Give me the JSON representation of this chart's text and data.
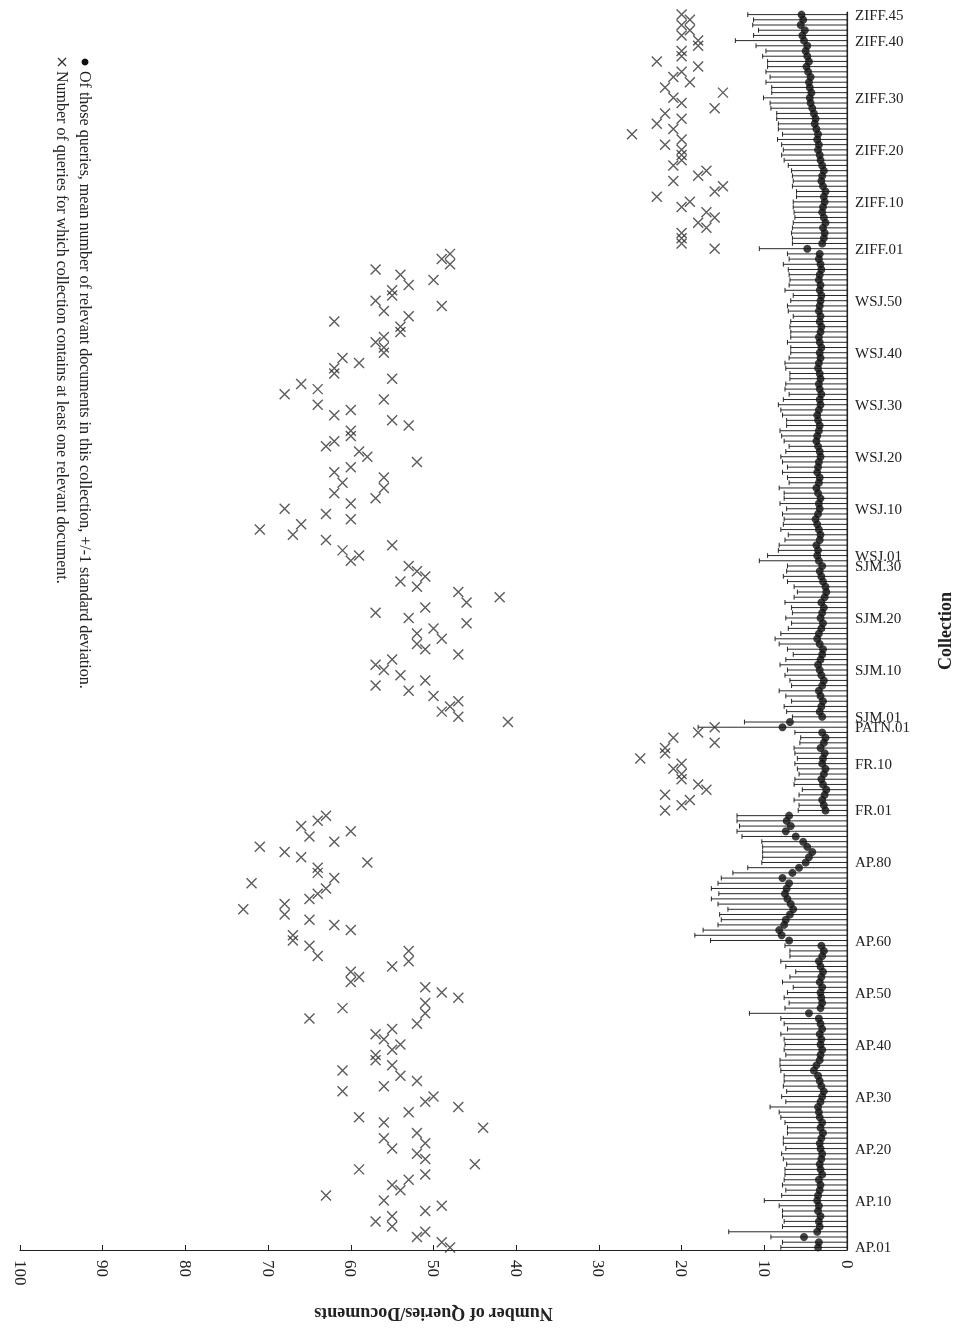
{
  "chart_data": {
    "type": "scatter",
    "orientation": "horizontal",
    "xlabel": "Number of Queries/Documents",
    "ylabel": "Collection",
    "legend": "top left",
    "grid": false,
    "xlim": [
      100,
      0
    ],
    "xticks": [
      0,
      10,
      20,
      30,
      40,
      50,
      60,
      70,
      80,
      90,
      100
    ],
    "categories": [
      "ZIFF.45",
      null,
      null,
      null,
      null,
      "ZIFF.40",
      null,
      null,
      null,
      null,
      null,
      null,
      null,
      null,
      null,
      null,
      "ZIFF.30",
      null,
      null,
      null,
      null,
      null,
      null,
      null,
      null,
      null,
      "ZIFF.20",
      null,
      null,
      null,
      null,
      null,
      null,
      null,
      null,
      null,
      "ZIFF.10",
      null,
      null,
      null,
      null,
      null,
      null,
      null,
      null,
      "ZIFF.01",
      null,
      null,
      null,
      null,
      null,
      null,
      null,
      null,
      null,
      "WSJ.50",
      null,
      null,
      null,
      null,
      null,
      null,
      null,
      null,
      null,
      "WSJ.40",
      null,
      null,
      null,
      null,
      null,
      null,
      null,
      null,
      null,
      "WSJ.30",
      null,
      null,
      null,
      null,
      null,
      null,
      null,
      null,
      null,
      "WSJ.20",
      null,
      null,
      null,
      null,
      null,
      null,
      null,
      null,
      null,
      "WSJ.10",
      null,
      null,
      null,
      null,
      null,
      null,
      null,
      null,
      "WSJ.01",
      null,
      "SJM.30",
      null,
      null,
      null,
      null,
      null,
      null,
      null,
      null,
      null,
      "SJM.20",
      null,
      null,
      null,
      null,
      null,
      null,
      null,
      null,
      null,
      "SJM.10",
      null,
      null,
      null,
      null,
      null,
      null,
      null,
      null,
      "SJM.01",
      null,
      "PATN.01",
      null,
      null,
      null,
      null,
      null,
      null,
      "FR.10",
      null,
      null,
      null,
      null,
      null,
      null,
      null,
      null,
      "FR.01",
      null,
      null,
      null,
      null,
      null,
      null,
      null,
      null,
      null,
      "AP.80",
      null,
      null,
      null,
      null,
      null,
      null,
      null,
      null,
      null,
      null,
      null,
      null,
      null,
      null,
      "AP.60",
      null,
      null,
      null,
      null,
      null,
      null,
      null,
      null,
      null,
      "AP.50",
      null,
      null,
      null,
      null,
      null,
      null,
      null,
      null,
      null,
      "AP.40",
      null,
      null,
      null,
      null,
      null,
      null,
      null,
      null,
      null,
      "AP.30",
      null,
      null,
      null,
      null,
      null,
      null,
      null,
      null,
      null,
      "AP.20",
      null,
      null,
      null,
      null,
      null,
      null,
      null,
      null,
      null,
      "AP.10",
      null,
      null,
      null,
      null,
      null,
      null,
      null,
      null,
      "AP.01"
    ],
    "series": [
      {
        "name": "Number of queries for which collection contains at least one relevant document.",
        "marker": "cross",
        "color": "#333333",
        "values": [
          20,
          19,
          20,
          19,
          20,
          18,
          18,
          20,
          20,
          23,
          18,
          20,
          21,
          19,
          22,
          15,
          21,
          20,
          16,
          22,
          20,
          23,
          21,
          26,
          20,
          22,
          20,
          20,
          20,
          21,
          17,
          18,
          21,
          15,
          16,
          23,
          19,
          20,
          17,
          16,
          18,
          17,
          20,
          20,
          20,
          16,
          48,
          49,
          48,
          57,
          54,
          50,
          53,
          55,
          55,
          57,
          49,
          56,
          53,
          62,
          54,
          54,
          56,
          57,
          56,
          56,
          61,
          59,
          62,
          62,
          55,
          66,
          64,
          68,
          56,
          64,
          60,
          62,
          55,
          53,
          60,
          60,
          62,
          63,
          59,
          58,
          52,
          60,
          62,
          56,
          61,
          56,
          62,
          57,
          60,
          68,
          63,
          60,
          66,
          71,
          67,
          63,
          55,
          61,
          59,
          60,
          53,
          52,
          51,
          54,
          52,
          47,
          42,
          46,
          51,
          57,
          53,
          46,
          50,
          52,
          49,
          52,
          51,
          47,
          55,
          57,
          56,
          54,
          51,
          57,
          53,
          50,
          47,
          48,
          49,
          47,
          41,
          16,
          18,
          21,
          16,
          22,
          22,
          25,
          20,
          21,
          20,
          20,
          18,
          17,
          22,
          19,
          20,
          22,
          63,
          64,
          66,
          60,
          65,
          62,
          71,
          68,
          66,
          58,
          64,
          64,
          62,
          72,
          63,
          64,
          65,
          68,
          73,
          68,
          65,
          62,
          60,
          67,
          67,
          65,
          53,
          64,
          53,
          55,
          60,
          59,
          60,
          51,
          49,
          47,
          51,
          61,
          51,
          65,
          52,
          55,
          57,
          56,
          54,
          55,
          57,
          57,
          55,
          61,
          54,
          52,
          56,
          61,
          50,
          51,
          47,
          53,
          59,
          56,
          44,
          52,
          56,
          51,
          55,
          52,
          51,
          45,
          59,
          51,
          53,
          55,
          54,
          63,
          56,
          49,
          51,
          55,
          57,
          55,
          51,
          52,
          49,
          48
        ]
      },
      {
        "name": "Of those queries, mean number of relevant documents in this collection, +/-1 standard deviation.",
        "marker": "circle",
        "color": "#111111",
        "values": [
          5.5,
          5.3,
          5.6,
          5.1,
          5.4,
          5.2,
          4.8,
          5.0,
          4.8,
          4.6,
          4.9,
          4.7,
          4.4,
          4.6,
          4.5,
          4.3,
          4.5,
          4.4,
          4.2,
          4.0,
          3.8,
          3.9,
          3.7,
          3.5,
          3.6,
          3.4,
          3.5,
          3.3,
          3.2,
          3.0,
          2.8,
          3.0,
          3.1,
          2.9,
          2.6,
          2.8,
          2.7,
          2.9,
          3.0,
          2.8,
          2.6,
          2.9,
          2.7,
          2.8,
          3.0,
          4.8,
          3.3,
          3.4,
          3.2,
          3.1,
          3.3,
          3.4,
          3.2,
          3.3,
          3.1,
          3.2,
          3.3,
          3.4,
          3.2,
          3.3,
          3.1,
          3.2,
          3.4,
          3.3,
          3.1,
          3.3,
          3.2,
          3.4,
          3.5,
          3.3,
          3.2,
          3.4,
          3.3,
          3.1,
          3.3,
          3.2,
          3.4,
          3.6,
          3.5,
          3.3,
          3.4,
          3.6,
          3.7,
          3.5,
          3.3,
          3.2,
          3.4,
          3.5,
          3.6,
          3.3,
          3.4,
          3.7,
          3.5,
          3.2,
          3.4,
          3.3,
          3.5,
          3.8,
          3.6,
          3.4,
          3.2,
          3.3,
          3.7,
          3.5,
          3.6,
          3.4,
          3.0,
          3.3,
          3.1,
          2.9,
          2.6,
          2.5,
          2.7,
          3.1,
          2.8,
          3.0,
          3.2,
          2.9,
          3.1,
          3.4,
          3.6,
          3.3,
          2.9,
          3.0,
          3.2,
          3.5,
          3.3,
          3.1,
          2.8,
          3.0,
          3.4,
          3.2,
          2.9,
          3.1,
          3.3,
          3.0,
          6.9,
          7.8,
          3.0,
          2.6,
          2.8,
          3.2,
          2.7,
          2.9,
          3.0,
          2.6,
          2.8,
          3.1,
          2.9,
          2.5,
          2.7,
          3.0,
          2.8,
          2.6,
          7.0,
          7.3,
          6.8,
          7.4,
          6.2,
          5.3,
          4.8,
          4.2,
          4.6,
          5.0,
          5.8,
          6.6,
          7.8,
          7.0,
          7.3,
          7.5,
          7.2,
          6.8,
          6.5,
          6.9,
          7.4,
          7.6,
          8.2,
          7.9,
          7.0,
          3.1,
          2.8,
          3.0,
          3.4,
          3.2,
          2.9,
          3.1,
          3.3,
          3.0,
          3.2,
          3.1,
          3.0,
          3.2,
          4.6,
          3.4,
          3.2,
          3.0,
          3.3,
          3.1,
          3.2,
          3.0,
          3.2,
          3.3,
          3.7,
          4.0,
          3.5,
          3.3,
          3.1,
          2.8,
          3.0,
          3.2,
          3.5,
          3.4,
          3.3,
          3.0,
          3.2,
          2.9,
          3.1,
          3.3,
          3.2,
          3.0,
          3.1,
          3.3,
          3.2,
          3.0,
          3.4,
          3.2,
          3.3,
          3.5,
          3.6,
          3.4,
          3.5,
          3.2,
          3.4,
          3.3,
          3.6,
          5.2,
          3.4,
          3.5
        ],
        "errors": [
          [
            0,
            12.0
          ],
          [
            0,
            11.3
          ],
          [
            0,
            11.4
          ],
          [
            0,
            10.7
          ],
          [
            0,
            11.3
          ],
          [
            0,
            13.5
          ],
          [
            0,
            11.0
          ],
          [
            0,
            9.8
          ],
          [
            0,
            10.2
          ],
          [
            0,
            9.6
          ],
          [
            0,
            9.6
          ],
          [
            0,
            9.8
          ],
          [
            0,
            9.3
          ],
          [
            0,
            9.8
          ],
          [
            0,
            9.1
          ],
          [
            0,
            9.1
          ],
          [
            0,
            10.1
          ],
          [
            0,
            9.3
          ],
          [
            0,
            9.2
          ],
          [
            0,
            8.5
          ],
          [
            0,
            8.5
          ],
          [
            0,
            8.3
          ],
          [
            0,
            8.3
          ],
          [
            0,
            7.8
          ],
          [
            0,
            8.4
          ],
          [
            0,
            7.9
          ],
          [
            0,
            7.7
          ],
          [
            0,
            7.9
          ],
          [
            0,
            7.6
          ],
          [
            0,
            7.1
          ],
          [
            0,
            6.7
          ],
          [
            0,
            6.6
          ],
          [
            0,
            6.5
          ],
          [
            0,
            6.6
          ],
          [
            0,
            6.1
          ],
          [
            0,
            6.1
          ],
          [
            0,
            6.5
          ],
          [
            0,
            6.5
          ],
          [
            0,
            6.4
          ],
          [
            0,
            6.3
          ],
          [
            0,
            6.5
          ],
          [
            0,
            6.6
          ],
          [
            0,
            6.7
          ],
          [
            0,
            6.6
          ],
          [
            0,
            6.6
          ],
          [
            0,
            10.6
          ],
          [
            0,
            7.2
          ],
          [
            0,
            7.0
          ],
          [
            0,
            7.7
          ],
          [
            0,
            7.1
          ],
          [
            0,
            7.0
          ],
          [
            0,
            6.9
          ],
          [
            0,
            7.0
          ],
          [
            0,
            7.5
          ],
          [
            0,
            6.5
          ],
          [
            0,
            6.8
          ],
          [
            0,
            7.2
          ],
          [
            0,
            7.1
          ],
          [
            0,
            6.5
          ],
          [
            0,
            6.8
          ],
          [
            0,
            6.9
          ],
          [
            0,
            6.8
          ],
          [
            0,
            6.8
          ],
          [
            0,
            7.2
          ],
          [
            0,
            6.8
          ],
          [
            0,
            6.8
          ],
          [
            0,
            7.0
          ],
          [
            0,
            7.5
          ],
          [
            0,
            7.4
          ],
          [
            0,
            6.9
          ],
          [
            0,
            6.9
          ],
          [
            0,
            7.4
          ],
          [
            0,
            7.5
          ],
          [
            0,
            7.0
          ],
          [
            0,
            7.7
          ],
          [
            0,
            8.3
          ],
          [
            0,
            8.0
          ],
          [
            0,
            7.8
          ],
          [
            0,
            7.3
          ],
          [
            0,
            7.3
          ],
          [
            0,
            8.1
          ],
          [
            0,
            7.9
          ],
          [
            0,
            7.6
          ],
          [
            0,
            7.0
          ],
          [
            0,
            7.4
          ],
          [
            0,
            8.0
          ],
          [
            0,
            7.8
          ],
          [
            0,
            7.2
          ],
          [
            0,
            7.8
          ],
          [
            0,
            7.2
          ],
          [
            0,
            7.0
          ],
          [
            0,
            8.2
          ],
          [
            0,
            7.6
          ],
          [
            0,
            7.6
          ],
          [
            0,
            8.1
          ],
          [
            0,
            7.3
          ],
          [
            0,
            7.8
          ],
          [
            0,
            7.6
          ],
          [
            0,
            7.7
          ],
          [
            0,
            8.0
          ],
          [
            0,
            7.1
          ],
          [
            0,
            7.5
          ],
          [
            0,
            8.2
          ],
          [
            0,
            8.3
          ],
          [
            0,
            9.6
          ],
          [
            0,
            10.6
          ],
          [
            0,
            7.2
          ],
          [
            0,
            7.3
          ],
          [
            0,
            7.7
          ],
          [
            0,
            7.2
          ],
          [
            0,
            6.4
          ],
          [
            0,
            6.0
          ],
          [
            0,
            6.4
          ],
          [
            0,
            7.5
          ],
          [
            0,
            6.7
          ],
          [
            0,
            6.6
          ],
          [
            0,
            7.4
          ],
          [
            0,
            6.7
          ],
          [
            0,
            7.1
          ],
          [
            0,
            8.0
          ],
          [
            0,
            8.7
          ],
          [
            0,
            8.2
          ],
          [
            0,
            7.2
          ],
          [
            0,
            6.5
          ],
          [
            0,
            7.4
          ],
          [
            0,
            8.1
          ],
          [
            0,
            7.2
          ],
          [
            0,
            7.5
          ],
          [
            0,
            6.9
          ],
          [
            0,
            6.7
          ],
          [
            0,
            8.2
          ],
          [
            0,
            7.4
          ],
          [
            0,
            6.7
          ],
          [
            0,
            7.6
          ],
          [
            0,
            7.3
          ],
          [
            0,
            6.6
          ],
          [
            0,
            12.4
          ],
          [
            0,
            18.0
          ],
          [
            0,
            6.3
          ],
          [
            0,
            5.6
          ],
          [
            0,
            5.7
          ],
          [
            0,
            6.4
          ],
          [
            0,
            6.3
          ],
          [
            0,
            6.0
          ],
          [
            0,
            6.3
          ],
          [
            0,
            6.0
          ],
          [
            0,
            5.8
          ],
          [
            0,
            6.3
          ],
          [
            0,
            6.4
          ],
          [
            0,
            5.4
          ],
          [
            0,
            5.8
          ],
          [
            0,
            6.4
          ],
          [
            0,
            5.8
          ],
          [
            0,
            5.9
          ],
          [
            0,
            13.3
          ],
          [
            0,
            13.3
          ],
          [
            0,
            13.0
          ],
          [
            0,
            13.3
          ],
          [
            0,
            12.7
          ],
          [
            0,
            10.3
          ],
          [
            0,
            10.2
          ],
          [
            0,
            10.2
          ],
          [
            0,
            10.2
          ],
          [
            0,
            10.3
          ],
          [
            0,
            12.0
          ],
          [
            0,
            13.8
          ],
          [
            0,
            15.2
          ],
          [
            0,
            15.6
          ],
          [
            0,
            16.4
          ],
          [
            0,
            15.5
          ],
          [
            0,
            16.4
          ],
          [
            0,
            15.6
          ],
          [
            0,
            14.4
          ],
          [
            0,
            15.4
          ],
          [
            0,
            15.2
          ],
          [
            0,
            15.6
          ],
          [
            0,
            17.4
          ],
          [
            0,
            18.4
          ],
          [
            0,
            16.5
          ],
          [
            0,
            7.5
          ],
          [
            0,
            6.9
          ],
          [
            0,
            6.9
          ],
          [
            0,
            8.0
          ],
          [
            0,
            7.4
          ],
          [
            0,
            6.2
          ],
          [
            0,
            6.9
          ],
          [
            0,
            7.8
          ],
          [
            0,
            6.5
          ],
          [
            0,
            7.2
          ],
          [
            0,
            7.6
          ],
          [
            0,
            7.0
          ],
          [
            0,
            7.5
          ],
          [
            0,
            11.8
          ],
          [
            0,
            8.0
          ],
          [
            0,
            7.6
          ],
          [
            0,
            7.2
          ],
          [
            0,
            8.0
          ],
          [
            0,
            7.6
          ],
          [
            0,
            7.5
          ],
          [
            0,
            7.6
          ],
          [
            0,
            7.4
          ],
          [
            0,
            8.1
          ],
          [
            0,
            8.1
          ],
          [
            0,
            8.0
          ],
          [
            0,
            7.6
          ],
          [
            0,
            7.6
          ],
          [
            0,
            7.7
          ],
          [
            0,
            7.3
          ],
          [
            0,
            7.9
          ],
          [
            0,
            7.4
          ],
          [
            0,
            9.3
          ],
          [
            0,
            8.2
          ],
          [
            0,
            8.0
          ],
          [
            0,
            7.5
          ],
          [
            0,
            7.2
          ],
          [
            0,
            7.2
          ],
          [
            0,
            7.7
          ],
          [
            0,
            7.7
          ],
          [
            0,
            7.4
          ],
          [
            0,
            7.9
          ],
          [
            0,
            7.7
          ],
          [
            0,
            7.3
          ],
          [
            0,
            7.5
          ],
          [
            0,
            7.5
          ],
          [
            0,
            7.6
          ],
          [
            0,
            7.8
          ],
          [
            0,
            7.4
          ],
          [
            0,
            7.9
          ],
          [
            0,
            10.0
          ],
          [
            0,
            8.2
          ],
          [
            0,
            7.8
          ],
          [
            0,
            7.8
          ],
          [
            0,
            7.6
          ],
          [
            0,
            7.8
          ],
          [
            0,
            14.3
          ],
          [
            0,
            9.2
          ],
          [
            0,
            7.8
          ],
          [
            0,
            8.0
          ]
        ]
      }
    ]
  }
}
